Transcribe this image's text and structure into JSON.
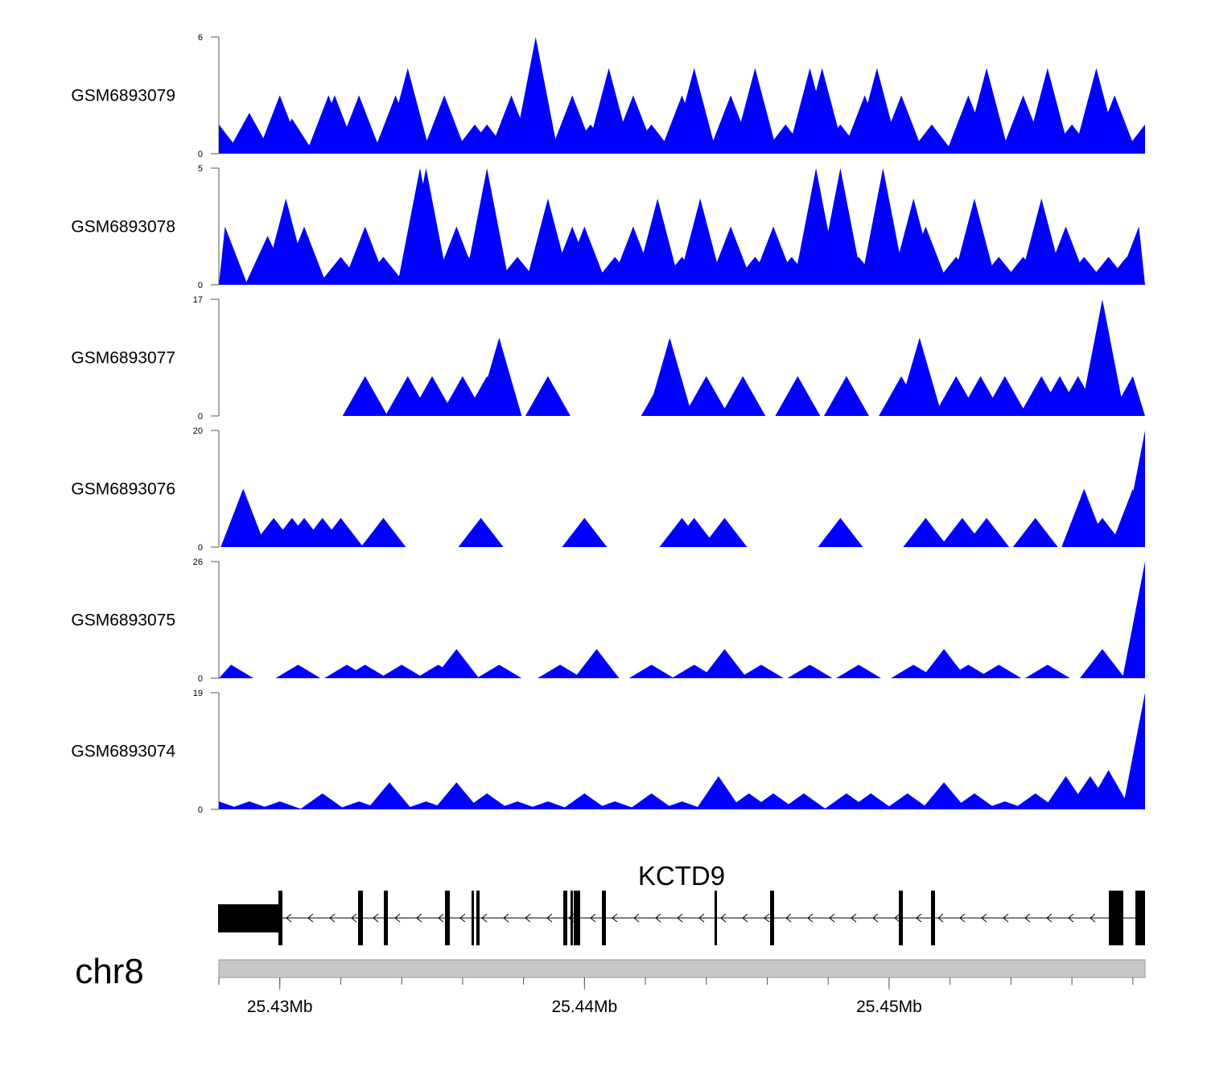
{
  "chart_data": {
    "type": "area",
    "title": "",
    "genome": "chr8",
    "x_range": [
      25.428,
      25.4584
    ],
    "x_unit": "Mb",
    "x_ticks": [
      {
        "value": 25.43,
        "label": "25.43Mb"
      },
      {
        "value": 25.44,
        "label": "25.44Mb"
      },
      {
        "value": 25.45,
        "label": "25.45Mb"
      }
    ],
    "minor_tick_step": 0.002,
    "series_color": "#0000ff",
    "tracks": [
      {
        "name": "GSM6893079",
        "ymax": 6,
        "ymin_label": "0",
        "ymax_label": "6",
        "peaks": [
          [
            25.428,
            1.5
          ],
          [
            25.429,
            2.1
          ],
          [
            25.43,
            3.0
          ],
          [
            25.4304,
            1.8
          ],
          [
            25.4316,
            3.0
          ],
          [
            25.4318,
            3.0
          ],
          [
            25.4326,
            3.0
          ],
          [
            25.4338,
            3.0
          ],
          [
            25.4342,
            4.4
          ],
          [
            25.4354,
            3.0
          ],
          [
            25.4364,
            1.5
          ],
          [
            25.4368,
            1.5
          ],
          [
            25.4376,
            3.0
          ],
          [
            25.4384,
            6.0
          ],
          [
            25.4396,
            3.0
          ],
          [
            25.4402,
            1.5
          ],
          [
            25.4408,
            4.4
          ],
          [
            25.4416,
            3.0
          ],
          [
            25.4422,
            1.5
          ],
          [
            25.4432,
            3.0
          ],
          [
            25.4436,
            4.4
          ],
          [
            25.4448,
            3.0
          ],
          [
            25.4456,
            4.4
          ],
          [
            25.4466,
            1.5
          ],
          [
            25.4474,
            4.4
          ],
          [
            25.4478,
            4.4
          ],
          [
            25.4484,
            1.5
          ],
          [
            25.4492,
            3.0
          ],
          [
            25.4496,
            4.4
          ],
          [
            25.4504,
            3.0
          ],
          [
            25.4514,
            1.5
          ],
          [
            25.4526,
            3.0
          ],
          [
            25.4532,
            4.4
          ],
          [
            25.4544,
            3.0
          ],
          [
            25.4552,
            4.4
          ],
          [
            25.456,
            1.5
          ],
          [
            25.4568,
            4.4
          ],
          [
            25.4574,
            3.0
          ],
          [
            25.4584,
            1.5
          ]
        ]
      },
      {
        "name": "GSM6893078",
        "ymax": 5,
        "ymin_label": "0",
        "ymax_label": "5",
        "peaks": [
          [
            25.4282,
            2.5
          ],
          [
            25.4296,
            2.1
          ],
          [
            25.4302,
            3.7
          ],
          [
            25.4308,
            2.5
          ],
          [
            25.432,
            1.2
          ],
          [
            25.4328,
            2.5
          ],
          [
            25.4334,
            1.2
          ],
          [
            25.4346,
            5.0
          ],
          [
            25.4348,
            5.0
          ],
          [
            25.4358,
            2.5
          ],
          [
            25.4362,
            1.2
          ],
          [
            25.4368,
            5.0
          ],
          [
            25.4378,
            1.2
          ],
          [
            25.4388,
            3.7
          ],
          [
            25.4396,
            2.5
          ],
          [
            25.44,
            2.5
          ],
          [
            25.441,
            1.2
          ],
          [
            25.4416,
            2.5
          ],
          [
            25.4424,
            3.7
          ],
          [
            25.4432,
            1.2
          ],
          [
            25.4438,
            3.7
          ],
          [
            25.4448,
            2.5
          ],
          [
            25.4456,
            1.2
          ],
          [
            25.4462,
            2.5
          ],
          [
            25.4468,
            1.2
          ],
          [
            25.4476,
            5.0
          ],
          [
            25.4484,
            5.0
          ],
          [
            25.449,
            1.2
          ],
          [
            25.4498,
            5.0
          ],
          [
            25.4508,
            3.7
          ],
          [
            25.4512,
            2.5
          ],
          [
            25.4522,
            1.2
          ],
          [
            25.4528,
            3.7
          ],
          [
            25.4536,
            1.2
          ],
          [
            25.4544,
            1.2
          ],
          [
            25.455,
            3.7
          ],
          [
            25.4558,
            2.5
          ],
          [
            25.4564,
            1.2
          ],
          [
            25.4572,
            1.2
          ],
          [
            25.4578,
            1.2
          ],
          [
            25.4582,
            2.5
          ]
        ]
      },
      {
        "name": "GSM6893077",
        "ymax": 17,
        "ymin_label": "0",
        "ymax_label": "17",
        "peaks": [
          [
            25.4328,
            5.8
          ],
          [
            25.4342,
            5.8
          ],
          [
            25.435,
            5.8
          ],
          [
            25.436,
            5.8
          ],
          [
            25.4368,
            5.8
          ],
          [
            25.4372,
            11.4
          ],
          [
            25.4388,
            5.8
          ],
          [
            25.4426,
            5.8
          ],
          [
            25.4428,
            11.4
          ],
          [
            25.444,
            5.8
          ],
          [
            25.4452,
            5.8
          ],
          [
            25.447,
            5.8
          ],
          [
            25.4486,
            5.8
          ],
          [
            25.4504,
            5.8
          ],
          [
            25.451,
            11.4
          ],
          [
            25.4522,
            5.8
          ],
          [
            25.453,
            5.8
          ],
          [
            25.4538,
            5.8
          ],
          [
            25.455,
            5.8
          ],
          [
            25.4556,
            5.8
          ],
          [
            25.4562,
            5.8
          ],
          [
            25.457,
            17.0
          ],
          [
            25.458,
            5.8
          ]
        ]
      },
      {
        "name": "GSM6893076",
        "ymax": 20,
        "ymin_label": "0",
        "ymax_label": "20",
        "peaks": [
          [
            25.4288,
            10.0
          ],
          [
            25.4298,
            5.0
          ],
          [
            25.4304,
            5.0
          ],
          [
            25.4308,
            5.0
          ],
          [
            25.4314,
            5.0
          ],
          [
            25.432,
            5.0
          ],
          [
            25.4334,
            5.0
          ],
          [
            25.4366,
            5.0
          ],
          [
            25.44,
            5.0
          ],
          [
            25.4432,
            5.0
          ],
          [
            25.4436,
            5.0
          ],
          [
            25.4446,
            5.0
          ],
          [
            25.4484,
            5.0
          ],
          [
            25.4512,
            5.0
          ],
          [
            25.4524,
            5.0
          ],
          [
            25.4532,
            5.0
          ],
          [
            25.4548,
            5.0
          ],
          [
            25.4564,
            10.0
          ],
          [
            25.457,
            5.0
          ],
          [
            25.458,
            10.0
          ],
          [
            25.4584,
            20.0
          ]
        ]
      },
      {
        "name": "GSM6893075",
        "ymax": 26,
        "ymin_label": "0",
        "ymax_label": "26",
        "peaks": [
          [
            25.4284,
            3.0
          ],
          [
            25.4306,
            3.0
          ],
          [
            25.4322,
            3.0
          ],
          [
            25.4328,
            3.0
          ],
          [
            25.434,
            3.0
          ],
          [
            25.4352,
            3.0
          ],
          [
            25.4358,
            6.5
          ],
          [
            25.4372,
            3.0
          ],
          [
            25.4392,
            3.0
          ],
          [
            25.4404,
            6.5
          ],
          [
            25.4422,
            3.0
          ],
          [
            25.4436,
            3.0
          ],
          [
            25.4446,
            6.5
          ],
          [
            25.4458,
            3.0
          ],
          [
            25.4474,
            3.0
          ],
          [
            25.449,
            3.0
          ],
          [
            25.4508,
            3.0
          ],
          [
            25.4518,
            6.5
          ],
          [
            25.4526,
            3.0
          ],
          [
            25.4536,
            3.0
          ],
          [
            25.4552,
            3.0
          ],
          [
            25.457,
            6.5
          ],
          [
            25.4584,
            26.0
          ]
        ]
      },
      {
        "name": "GSM6893074",
        "ymax": 19,
        "ymin_label": "0",
        "ymax_label": "19",
        "peaks": [
          [
            25.428,
            1.3
          ],
          [
            25.429,
            1.3
          ],
          [
            25.43,
            1.3
          ],
          [
            25.4314,
            2.6
          ],
          [
            25.4326,
            1.3
          ],
          [
            25.4336,
            4.4
          ],
          [
            25.4348,
            1.3
          ],
          [
            25.4358,
            4.4
          ],
          [
            25.4368,
            2.6
          ],
          [
            25.4378,
            1.3
          ],
          [
            25.4388,
            1.3
          ],
          [
            25.44,
            2.6
          ],
          [
            25.441,
            1.3
          ],
          [
            25.4422,
            2.6
          ],
          [
            25.4432,
            1.3
          ],
          [
            25.4444,
            5.4
          ],
          [
            25.4454,
            2.6
          ],
          [
            25.4462,
            2.6
          ],
          [
            25.4472,
            2.6
          ],
          [
            25.4486,
            2.6
          ],
          [
            25.4494,
            2.6
          ],
          [
            25.4506,
            2.6
          ],
          [
            25.4518,
            4.4
          ],
          [
            25.4528,
            2.6
          ],
          [
            25.4538,
            1.3
          ],
          [
            25.4548,
            2.6
          ],
          [
            25.4558,
            5.4
          ],
          [
            25.4566,
            5.4
          ],
          [
            25.4572,
            6.4
          ],
          [
            25.4584,
            19.0
          ]
        ]
      }
    ]
  },
  "gene_track": {
    "gene_name": "KCTD9",
    "strand": "-"
  }
}
